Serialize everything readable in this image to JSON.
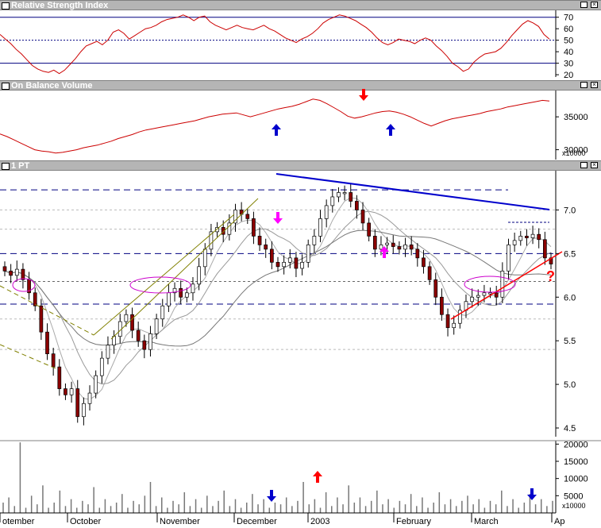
{
  "panels": {
    "rsi": {
      "title": "Relative Strength Index"
    },
    "obv": {
      "title": "On Balance Volume",
      "multiplier": "x10000"
    },
    "price": {
      "title": "1 PT"
    },
    "volume": {
      "multiplier": "x10000"
    }
  },
  "annotations": {
    "question_mark": "?"
  },
  "colors": {
    "price_line": "#cc0000",
    "down_bar": "#8b0000",
    "up_bar": "#ffffff",
    "trend_blue": "#0000cc",
    "arrow_blue": "#0000cc",
    "arrow_red": "#ff0000",
    "arrow_magenta": "#ff00ff",
    "ellipse": "#cc00cc",
    "support_red": "#ff0000",
    "ma_gray": "#888888"
  },
  "chart_data": [
    {
      "type": "line",
      "panel": "rsi",
      "title": "Relative Strength Index",
      "y_ticks": [
        20,
        30,
        40,
        50,
        60,
        70
      ],
      "ylim": [
        18,
        76
      ],
      "reference_lines": [
        70,
        50,
        30
      ],
      "values": [
        55,
        51,
        47,
        42,
        38,
        33,
        28,
        25,
        23,
        22,
        24,
        21,
        24,
        29,
        34,
        40,
        45,
        47,
        49,
        46,
        50,
        57,
        59,
        56,
        51,
        54,
        57,
        60,
        61,
        63,
        66,
        68,
        69,
        70,
        72,
        70,
        67,
        70,
        71,
        66,
        63,
        61,
        59,
        61,
        63,
        61,
        60,
        59,
        61,
        63,
        60,
        58,
        55,
        52,
        50,
        48,
        51,
        53,
        56,
        60,
        65,
        68,
        70,
        72,
        71,
        69,
        67,
        64,
        61,
        57,
        52,
        48,
        46,
        48,
        51,
        50,
        49,
        47,
        50,
        52,
        50,
        45,
        41,
        36,
        30,
        27,
        23,
        25,
        31,
        35,
        38,
        39,
        40,
        43,
        48,
        54,
        59,
        64,
        67,
        65,
        62,
        55,
        51
      ]
    },
    {
      "type": "line",
      "panel": "obv",
      "title": "On Balance Volume",
      "y_ticks": [
        30000,
        35000
      ],
      "ylim": [
        28500,
        39000
      ],
      "values": [
        32400,
        32000,
        31500,
        31000,
        30500,
        30000,
        29800,
        29700,
        29500,
        29600,
        29800,
        30000,
        30300,
        30500,
        30700,
        31000,
        31300,
        31700,
        32000,
        32300,
        32700,
        33000,
        33200,
        33400,
        33600,
        33800,
        34000,
        34200,
        34400,
        34700,
        35000,
        35200,
        35400,
        35500,
        35600,
        35300,
        35000,
        35300,
        35600,
        35900,
        36200,
        36400,
        36600,
        36900,
        37300,
        37700,
        37500,
        37000,
        36400,
        35800,
        35100,
        34800,
        35000,
        35300,
        35600,
        35800,
        35900,
        35700,
        35400,
        35000,
        34500,
        34000,
        33600,
        34000,
        34400,
        34700,
        34900,
        35100,
        35300,
        35500,
        35800,
        36000,
        36200,
        36500,
        36700,
        36900,
        37100,
        37300,
        37500,
        37400
      ]
    },
    {
      "type": "ohlc-candlestick",
      "panel": "price",
      "title": "1 PT",
      "y_ticks": [
        4.5,
        5.0,
        5.5,
        6.0,
        6.5,
        7.0
      ],
      "ylim": [
        4.4,
        7.45
      ],
      "horizontal_levels_dashed": [
        7.23,
        6.5,
        6.18,
        5.92
      ],
      "close": [
        6.3,
        6.25,
        6.32,
        6.2,
        6.05,
        5.9,
        5.6,
        5.35,
        5.2,
        4.95,
        4.88,
        4.95,
        4.63,
        4.78,
        4.9,
        5.1,
        5.3,
        5.45,
        5.55,
        5.72,
        5.8,
        5.62,
        5.5,
        5.4,
        5.58,
        5.75,
        5.9,
        6.05,
        6.1,
        6.0,
        6.05,
        6.15,
        6.35,
        6.55,
        6.75,
        6.8,
        6.72,
        6.85,
        7.0,
        6.95,
        6.9,
        6.7,
        6.6,
        6.55,
        6.4,
        6.35,
        6.4,
        6.45,
        6.33,
        6.4,
        6.6,
        6.7,
        6.9,
        7.05,
        7.15,
        7.2,
        7.2,
        7.1,
        7.0,
        6.85,
        6.7,
        6.55,
        6.6,
        6.62,
        6.58,
        6.55,
        6.6,
        6.55,
        6.45,
        6.35,
        6.2,
        6.0,
        5.8,
        5.65,
        5.7,
        5.85,
        5.95,
        6.0,
        6.02,
        6.05,
        6.05,
        6.0,
        6.3,
        6.6,
        6.65,
        6.7,
        6.68,
        6.72,
        6.66,
        6.45,
        6.38
      ],
      "moving_averages": 3
    },
    {
      "type": "bar",
      "panel": "volume",
      "y_ticks": [
        5000,
        10000,
        15000,
        20000
      ],
      "ylim": [
        0,
        21000
      ],
      "x_ticks": [
        "otember",
        "October",
        "November",
        "December",
        "2003",
        "February",
        "March",
        "Ap"
      ],
      "values": [
        3000,
        4500,
        2000,
        20500,
        1500,
        5000,
        2500,
        8000,
        1500,
        3000,
        6500,
        2000,
        4000,
        1500,
        3500,
        2500,
        7500,
        1500,
        4000,
        2000,
        3000,
        5500,
        1500,
        3500,
        2500,
        5000,
        9000,
        2000,
        4500,
        1500,
        3500,
        2500,
        6000,
        2000,
        4000,
        1500,
        5000,
        2000,
        3500,
        6500,
        2000,
        4000,
        1500,
        3000,
        5500,
        2500,
        4000,
        1500,
        3000,
        2500,
        4500,
        2000,
        3500,
        9000,
        2500,
        4000,
        1500,
        6000,
        2000,
        4500,
        2500,
        8000,
        3000,
        4500,
        2000,
        3500,
        6500,
        2500,
        4000,
        1500,
        3500,
        2500,
        5500,
        2000,
        4500,
        1500,
        3000,
        6000,
        2500,
        4000,
        2000,
        3500,
        5000,
        2500,
        4000,
        1500,
        3500,
        2500,
        6500,
        2000,
        4000,
        1500,
        3000,
        5500,
        2500,
        4000,
        2000,
        3500
      ]
    }
  ]
}
